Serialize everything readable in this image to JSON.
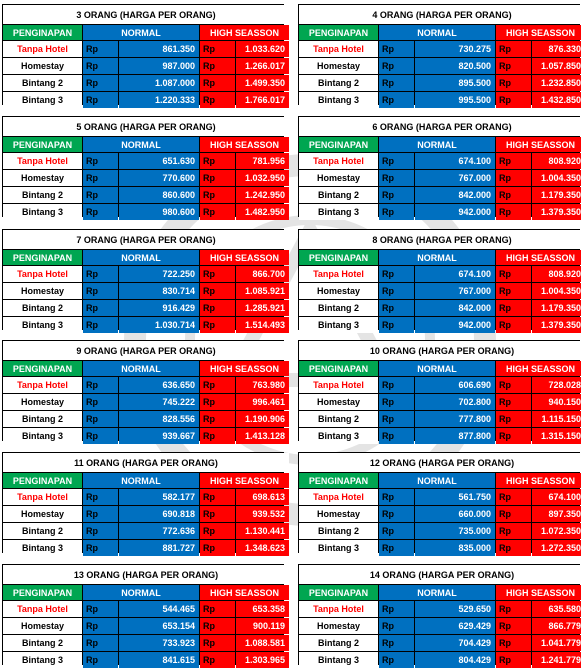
{
  "colors": {
    "green": "#00a651",
    "blue": "#0070c0",
    "red": "#ff0000"
  },
  "header": {
    "penginapan": "PENGINAPAN",
    "normal": "NORMAL",
    "high": "HIGH SEASSON"
  },
  "rows": [
    "Tanpa Hotel",
    "Homestay",
    "Bintang 2",
    "Bintang 3"
  ],
  "currency": "Rp",
  "tables": [
    {
      "title": "3 ORANG (HARGA PER ORANG)",
      "normal": [
        "861.350",
        "987.000",
        "1.087.000",
        "1.220.333"
      ],
      "high": [
        "1.033.620",
        "1.266.017",
        "1.499.350",
        "1.766.017"
      ]
    },
    {
      "title": "4 ORANG (HARGA PER ORANG)",
      "normal": [
        "730.275",
        "820.500",
        "895.500",
        "995.500"
      ],
      "high": [
        "876.330",
        "1.057.850",
        "1.232.850",
        "1.432.850"
      ]
    },
    {
      "title": "5 ORANG (HARGA PER ORANG)",
      "normal": [
        "651.630",
        "770.600",
        "860.600",
        "980.600"
      ],
      "high": [
        "781.956",
        "1.032.950",
        "1.242.950",
        "1.482.950"
      ]
    },
    {
      "title": "6 ORANG (HARGA PER ORANG)",
      "normal": [
        "674.100",
        "767.000",
        "842.000",
        "942.000"
      ],
      "high": [
        "808.920",
        "1.004.350",
        "1.179.350",
        "1.379.350"
      ]
    },
    {
      "title": "7 ORANG (HARGA PER ORANG)",
      "normal": [
        "722.250",
        "830.714",
        "916.429",
        "1.030.714"
      ],
      "high": [
        "866.700",
        "1.085.921",
        "1.285.921",
        "1.514.493"
      ]
    },
    {
      "title": "8 ORANG (HARGA PER ORANG)",
      "normal": [
        "674.100",
        "767.000",
        "842.000",
        "942.000"
      ],
      "high": [
        "808.920",
        "1.004.350",
        "1.179.350",
        "1.379.350"
      ]
    },
    {
      "title": "9 ORANG (HARGA PER ORANG)",
      "normal": [
        "636.650",
        "745.222",
        "828.556",
        "939.667"
      ],
      "high": [
        "763.980",
        "996.461",
        "1.190.906",
        "1.413.128"
      ]
    },
    {
      "title": "10 ORANG (HARGA PER ORANG)",
      "normal": [
        "606.690",
        "702.800",
        "777.800",
        "877.800"
      ],
      "high": [
        "728.028",
        "940.150",
        "1.115.150",
        "1.315.150"
      ]
    },
    {
      "title": "11 ORANG (HARGA PER ORANG)",
      "normal": [
        "582.177",
        "690.818",
        "772.636",
        "881.727"
      ],
      "high": [
        "698.613",
        "939.532",
        "1.130.441",
        "1.348.623"
      ]
    },
    {
      "title": "12 ORANG (HARGA PER ORANG)",
      "normal": [
        "561.750",
        "660.000",
        "735.000",
        "835.000"
      ],
      "high": [
        "674.100",
        "897.350",
        "1.072.350",
        "1.272.350"
      ]
    },
    {
      "title": "13 ORANG (HARGA PER ORANG)",
      "normal": [
        "544.465",
        "653.154",
        "733.923",
        "841.615"
      ],
      "high": [
        "653.358",
        "900.119",
        "1.088.581",
        "1.303.965"
      ]
    },
    {
      "title": "14 ORANG (HARGA PER ORANG)",
      "normal": [
        "529.650",
        "629.429",
        "704.429",
        "804.429"
      ],
      "high": [
        "635.580",
        "866.779",
        "1.041.779",
        "1.241.779"
      ]
    }
  ]
}
